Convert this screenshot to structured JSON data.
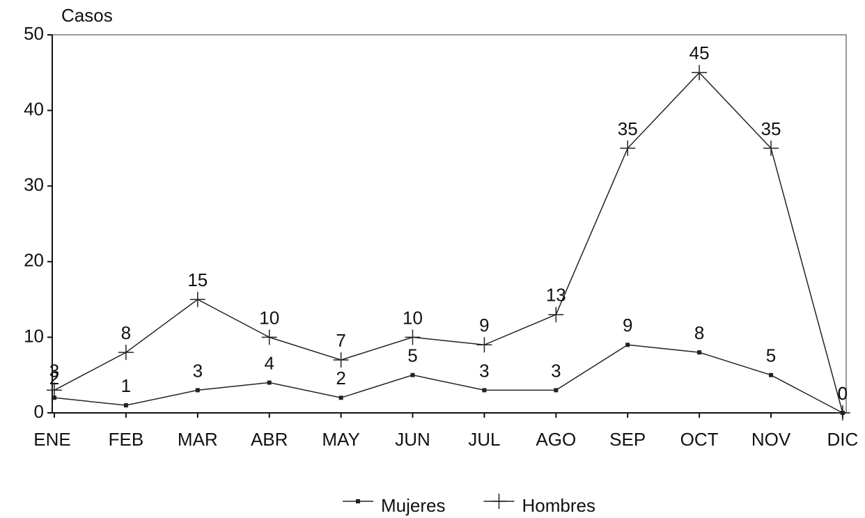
{
  "chart_data": {
    "type": "line",
    "y_label": "Casos",
    "categories": [
      "ENE",
      "FEB",
      "MAR",
      "ABR",
      "MAY",
      "JUN",
      "JUL",
      "AGO",
      "SEP",
      "OCT",
      "NOV",
      "DIC"
    ],
    "series": [
      {
        "name": "Mujeres",
        "color": "#222222",
        "marker": "square",
        "values": [
          2,
          1,
          3,
          4,
          2,
          5,
          3,
          3,
          9,
          8,
          5,
          0
        ]
      },
      {
        "name": "Hombres",
        "color": "#222222",
        "marker": "plus",
        "values": [
          3,
          8,
          15,
          10,
          7,
          10,
          9,
          13,
          35,
          45,
          35,
          0
        ]
      }
    ],
    "ylim": [
      0,
      50
    ],
    "yticks": [
      0,
      10,
      20,
      30,
      40,
      50
    ],
    "legend": "bottom"
  }
}
